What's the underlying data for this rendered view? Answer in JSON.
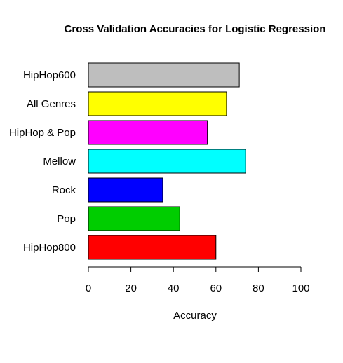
{
  "chart_data": {
    "type": "bar",
    "orientation": "horizontal",
    "title": "Cross Validation Accuracies for Logistic Regression",
    "xlabel": "Accuracy",
    "ylabel": "",
    "xlim": [
      0,
      100
    ],
    "xticks": [
      0,
      20,
      40,
      60,
      80,
      100
    ],
    "grid": false,
    "legend": "none",
    "categories": [
      "HipHop600",
      "All Genres",
      "HipHop & Pop",
      "Mellow",
      "Rock",
      "Pop",
      "HipHop800"
    ],
    "values": [
      71,
      65,
      56,
      74,
      35,
      43,
      60
    ],
    "colors": [
      "#bebebe",
      "#ffff00",
      "#ff00ff",
      "#00ffff",
      "#0000ff",
      "#00cd00",
      "#ff0000"
    ]
  }
}
